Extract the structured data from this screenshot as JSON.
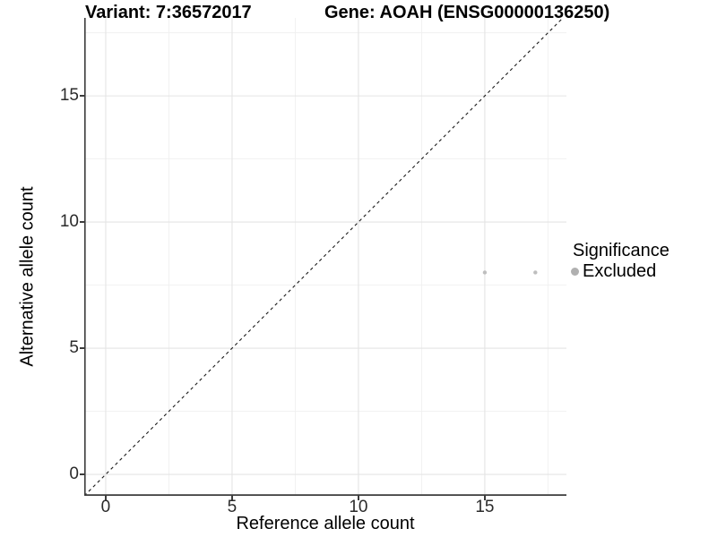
{
  "header": {
    "variant_title": "Variant: 7:36572017",
    "gene_title": "Gene: AOAH (ENSG00000136250)"
  },
  "chart_data": {
    "type": "scatter",
    "title": "Variant: 7:36572017 — Gene: AOAH (ENSG00000136250)",
    "xlabel": "Reference allele count",
    "ylabel": "Alternative allele count",
    "xlim": [
      -0.85,
      18.23
    ],
    "ylim": [
      -0.85,
      18.09
    ],
    "x_ticks": [
      0,
      5,
      10,
      15
    ],
    "y_ticks": [
      0,
      5,
      10,
      15
    ],
    "x_minor_ticks": [
      2.5,
      7.5,
      12.5,
      17.5
    ],
    "y_minor_ticks": [
      2.5,
      7.5,
      12.5,
      17.5
    ],
    "grid": "on",
    "identity_line": {
      "equation": "y = x",
      "style": "dashed",
      "from": [
        -0.85,
        -0.85
      ],
      "to": [
        18.09,
        18.09
      ],
      "color": "#1a1a1a"
    },
    "series": [
      {
        "name": "Excluded",
        "color": "#bebebe",
        "point_radius": 2.2,
        "points": [
          [
            15,
            8
          ],
          [
            17,
            8
          ]
        ]
      }
    ],
    "legend": {
      "title": "Significance",
      "position": "right",
      "items": [
        {
          "label": "Excluded",
          "color": "#b0b0b0"
        }
      ]
    }
  },
  "colors": {
    "background": "#ffffff",
    "grid_major": "#e4e4e4",
    "grid_minor": "#f0f0f0",
    "axis_line": "#3c3c3c",
    "tick_text": "#2b2b2b",
    "point": "#bebebe"
  }
}
